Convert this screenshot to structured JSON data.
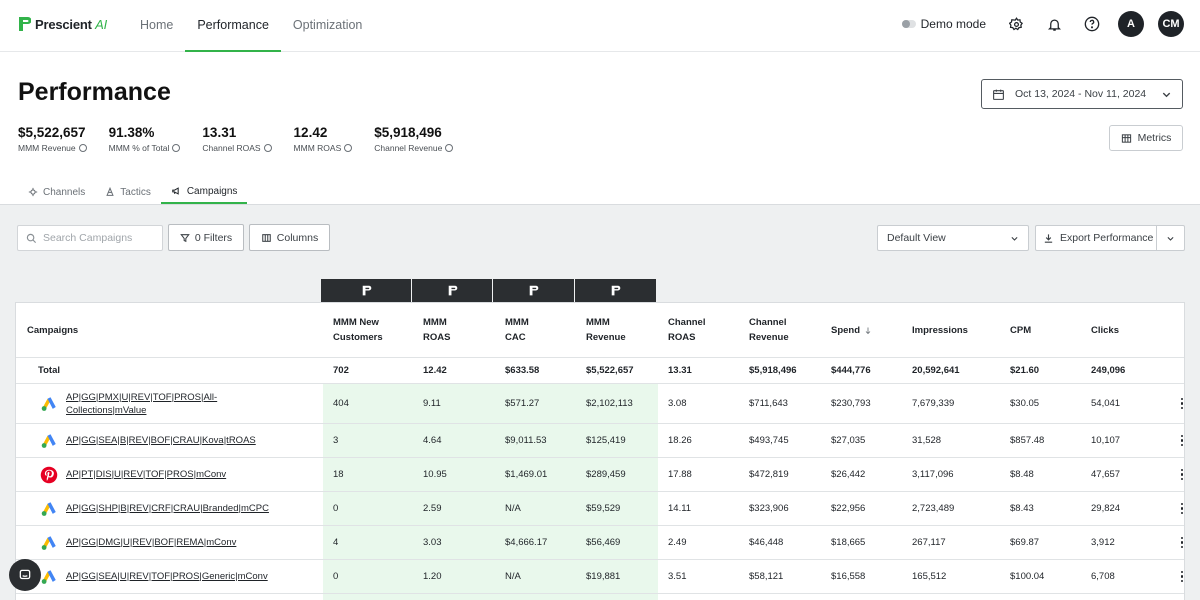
{
  "brand": {
    "name": "Prescient",
    "suffix": "AI",
    "accent": "#32b34a"
  },
  "nav": {
    "tabs": [
      "Home",
      "Performance",
      "Optimization"
    ],
    "demo_mode_label": "Demo mode",
    "avatars": [
      "A",
      "CM"
    ]
  },
  "header": {
    "title": "Performance",
    "date_range": "Oct 13, 2024 - Nov 11, 2024",
    "metrics_label": "Metrics"
  },
  "kpis": [
    {
      "value": "$5,522,657",
      "label": "MMM Revenue"
    },
    {
      "value": "91.38%",
      "label": "MMM % of Total"
    },
    {
      "value": "13.31",
      "label": "Channel ROAS"
    },
    {
      "value": "12.42",
      "label": "MMM ROAS"
    },
    {
      "value": "$5,918,496",
      "label": "Channel Revenue"
    }
  ],
  "subtabs": [
    "Channels",
    "Tactics",
    "Campaigns"
  ],
  "toolbar": {
    "search_placeholder": "Search Campaigns",
    "filters_label": "0 Filters",
    "columns_label": "Columns",
    "view_label": "Default View",
    "export_label": "Export Performance"
  },
  "table": {
    "headers": {
      "campaigns": "Campaigns",
      "mmm_new_customers_1": "MMM New",
      "mmm_new_customers_2": "Customers",
      "mmm_roas_1": "MMM",
      "mmm_roas_2": "ROAS",
      "mmm_cac_1": "MMM",
      "mmm_cac_2": "CAC",
      "mmm_revenue_1": "MMM",
      "mmm_revenue_2": "Revenue",
      "channel_roas_1": "Channel",
      "channel_roas_2": "ROAS",
      "channel_revenue_1": "Channel",
      "channel_revenue_2": "Revenue",
      "spend": "Spend",
      "impressions": "Impressions",
      "cpm": "CPM",
      "clicks": "Clicks"
    },
    "total": {
      "label": "Total",
      "new_customers": "702",
      "mmm_roas": "12.42",
      "mmm_cac": "$633.58",
      "mmm_revenue": "$5,522,657",
      "channel_roas": "13.31",
      "channel_revenue": "$5,918,496",
      "spend": "$444,776",
      "impressions": "20,592,641",
      "cpm": "$21.60",
      "clicks": "249,096"
    },
    "rows": [
      {
        "channel": "google-ads",
        "name1": "AP|GG|PMX|U|REV|TOF|PROS|All-",
        "name2": "Collections|mValue",
        "new_customers": "404",
        "mmm_roas": "9.11",
        "mmm_cac": "$571.27",
        "mmm_revenue": "$2,102,113",
        "channel_roas": "3.08",
        "channel_revenue": "$711,643",
        "spend": "$230,793",
        "impressions": "7,679,339",
        "cpm": "$30.05",
        "clicks": "54,041"
      },
      {
        "channel": "google-ads",
        "name1": "AP|GG|SEA|B|REV|BOF|CRAU|Kova|tROAS",
        "name2": "",
        "new_customers": "3",
        "mmm_roas": "4.64",
        "mmm_cac": "$9,011.53",
        "mmm_revenue": "$125,419",
        "channel_roas": "18.26",
        "channel_revenue": "$493,745",
        "spend": "$27,035",
        "impressions": "31,528",
        "cpm": "$857.48",
        "clicks": "10,107"
      },
      {
        "channel": "pinterest",
        "name1": "AP|PT|DIS|U|REV|TOF|PROS|mConv",
        "name2": "",
        "new_customers": "18",
        "mmm_roas": "10.95",
        "mmm_cac": "$1,469.01",
        "mmm_revenue": "$289,459",
        "channel_roas": "17.88",
        "channel_revenue": "$472,819",
        "spend": "$26,442",
        "impressions": "3,117,096",
        "cpm": "$8.48",
        "clicks": "47,657"
      },
      {
        "channel": "google-ads",
        "name1": "AP|GG|SHP|B|REV|CRF|CRAU|Branded|mCPC",
        "name2": "",
        "new_customers": "0",
        "mmm_roas": "2.59",
        "mmm_cac": "N/A",
        "mmm_revenue": "$59,529",
        "channel_roas": "14.11",
        "channel_revenue": "$323,906",
        "spend": "$22,956",
        "impressions": "2,723,489",
        "cpm": "$8.43",
        "clicks": "29,824"
      },
      {
        "channel": "google-ads",
        "name1": "AP|GG|DMG|U|REV|BOF|REMA|mConv",
        "name2": "",
        "new_customers": "4",
        "mmm_roas": "3.03",
        "mmm_cac": "$4,666.17",
        "mmm_revenue": "$56,469",
        "channel_roas": "2.49",
        "channel_revenue": "$46,448",
        "spend": "$18,665",
        "impressions": "267,117",
        "cpm": "$69.87",
        "clicks": "3,912"
      },
      {
        "channel": "google-ads",
        "name1": "AP|GG|SEA|U|REV|TOF|PROS|Generic|mConv",
        "name2": "",
        "new_customers": "0",
        "mmm_roas": "1.20",
        "mmm_cac": "N/A",
        "mmm_revenue": "$19,881",
        "channel_roas": "3.51",
        "channel_revenue": "$58,121",
        "spend": "$16,558",
        "impressions": "165,512",
        "cpm": "$100.04",
        "clicks": "6,708"
      }
    ]
  }
}
